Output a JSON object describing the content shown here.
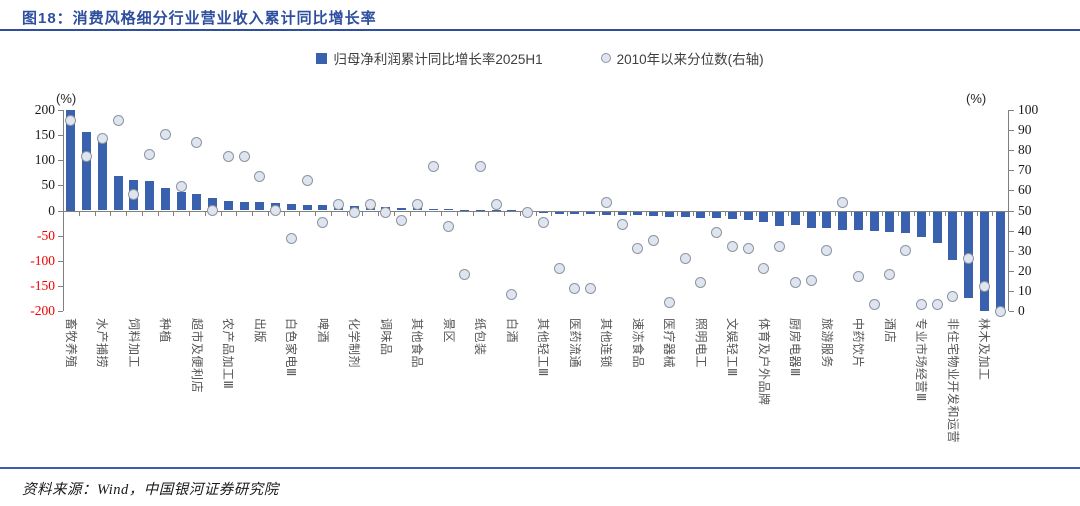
{
  "header": {
    "title": "图18：消费风格细分行业营业收入累计同比增长率"
  },
  "footer": {
    "source": "资料来源：Wind，中国银河证券研究院"
  },
  "legend": {
    "bar_label": "归母净利润累计同比增长率2025H1",
    "dot_label": "2010年以来分位数(右轴)"
  },
  "colors": {
    "accent_blue": "#2e4e9e",
    "rule_blue": "#3c5fa7",
    "bar_fill": "#3a61ad",
    "dot_fill": "#dee5f1",
    "dot_stroke": "#8d959e",
    "axis_gray": "#808080",
    "negative_red": "#f00000"
  },
  "chart_data": {
    "type": "bar",
    "subtype": "bar-with-scatter-overlay",
    "title": "消费风格细分行业营业收入累计同比增长率",
    "categories": [
      "畜牧养殖",
      "",
      "水产捕捞",
      "",
      "饲料加工",
      "",
      "种植",
      "",
      "超市及便利店",
      "",
      "农产品加工Ⅲ",
      "",
      "出版",
      "",
      "白色家电Ⅲ",
      "",
      "啤酒",
      "",
      "化学制剂",
      "",
      "调味品",
      "",
      "其他食品",
      "",
      "景区",
      "",
      "纸包装",
      "",
      "白酒",
      "",
      "其他轻工Ⅲ",
      "",
      "医药流通",
      "",
      "其他连锁",
      "",
      "速冻食品",
      "",
      "医疗器械",
      "",
      "照明电工",
      "",
      "文娱轻工Ⅲ",
      "",
      "体育及户外品牌",
      "",
      "厨房电器Ⅲ",
      "",
      "旅游服务",
      "",
      "中药饮片",
      "",
      "酒店",
      "",
      "专业市场经营Ⅲ",
      "",
      "非住宅物业开发和运营",
      "",
      "林木及加工",
      ""
    ],
    "series": [
      {
        "name": "归母净利润累计同比增长率2025H1",
        "type": "bar",
        "axis": "left",
        "values": [
          202,
          156,
          140,
          69,
          61,
          59,
          44,
          36,
          33,
          25,
          19,
          16,
          16,
          15,
          13,
          11,
          10,
          9,
          8,
          8,
          6,
          5,
          4,
          2,
          2,
          1,
          1,
          1,
          0.5,
          -2,
          -5,
          -6,
          -6,
          -7,
          -8,
          -8,
          -9,
          -10,
          -12,
          -12,
          -14,
          -15,
          -17,
          -19,
          -22,
          -30,
          -28,
          -35,
          -35,
          -38,
          -38,
          -41,
          -43,
          -45,
          -53,
          -65,
          -98,
          -175,
          -200,
          -200
        ]
      },
      {
        "name": "2010年以来分位数(右轴)",
        "type": "scatter",
        "axis": "right",
        "values": [
          95,
          77,
          86,
          95,
          58,
          78,
          88,
          62,
          84,
          50,
          77,
          77,
          67,
          50,
          36,
          65,
          44,
          53,
          49,
          53,
          49,
          45,
          53,
          72,
          42,
          18,
          72,
          53,
          8,
          49,
          44,
          21,
          11,
          11,
          54,
          43,
          31,
          35,
          4,
          26,
          14,
          39,
          32,
          31,
          21,
          32,
          14,
          15,
          30,
          54,
          17,
          3,
          18,
          30,
          3,
          3,
          7,
          26,
          12,
          0
        ]
      }
    ],
    "left_axis": {
      "unit": "(%)",
      "min": -200,
      "max": 200,
      "ticks": [
        200,
        150,
        100,
        50,
        0,
        -50,
        -100,
        -150,
        -200
      ]
    },
    "right_axis": {
      "unit": "(%)",
      "min": 0,
      "max": 100,
      "ticks": [
        100,
        90,
        80,
        70,
        60,
        50,
        40,
        30,
        20,
        10,
        0
      ]
    },
    "grid": false,
    "legend_position": "top-center",
    "x_labels_rotation": "vertical-90cw-every-other"
  }
}
